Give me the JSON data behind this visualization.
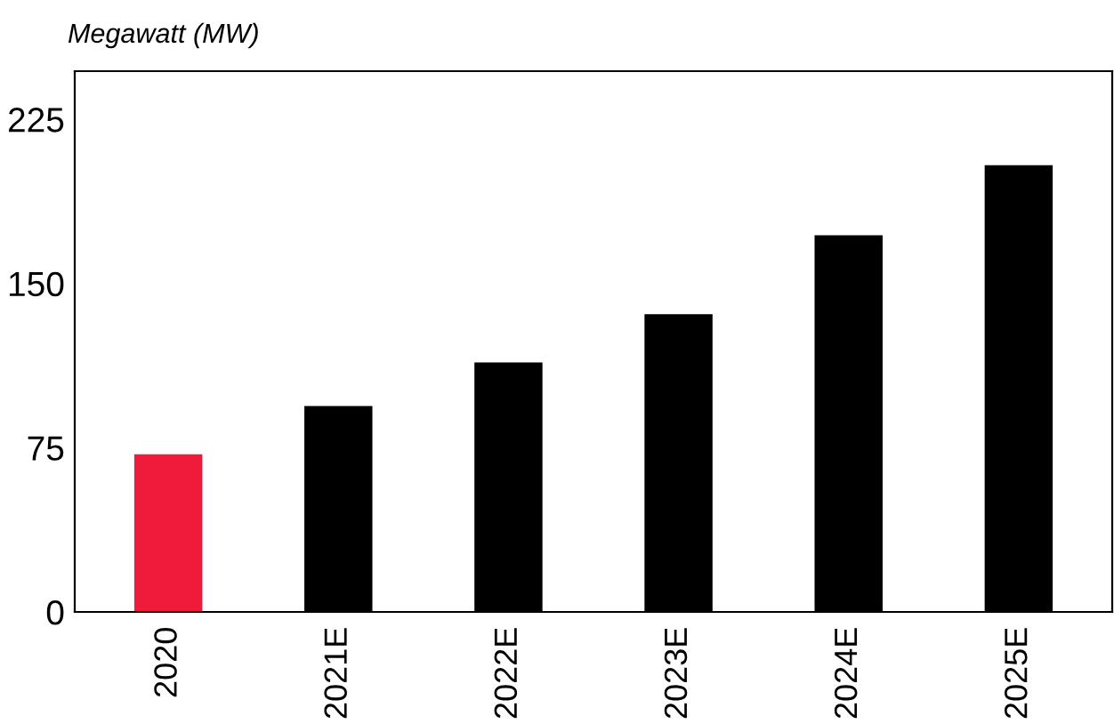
{
  "chart_data": {
    "type": "bar",
    "ylabel": "Megawatt (MW)",
    "categories": [
      "2020",
      "2021E",
      "2022E",
      "2023E",
      "2024E",
      "2025E"
    ],
    "values": [
      72,
      94,
      114,
      136,
      172,
      204
    ],
    "colors": [
      "#ee1c3a",
      "#000000",
      "#000000",
      "#000000",
      "#000000",
      "#000000"
    ],
    "ylim": [
      0,
      247
    ],
    "yticks": [
      0,
      75,
      150,
      225
    ],
    "grid": false
  }
}
